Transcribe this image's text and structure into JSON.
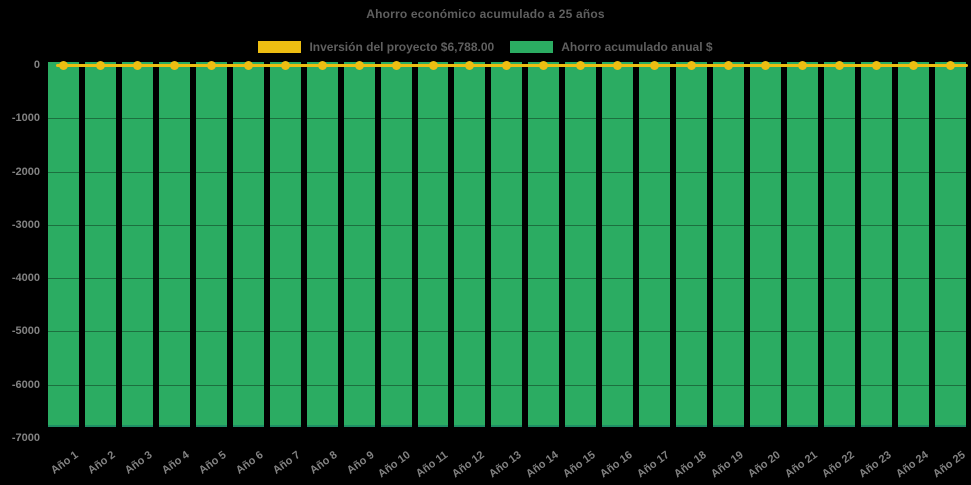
{
  "page": {
    "background": "#000000"
  },
  "chart": {
    "title": "Ahorro económico acumulado a 25 años",
    "legend": {
      "items": [
        {
          "id": "investment",
          "label": "Inversión del proyecto $6,788.00",
          "color": "#EDBE12"
        },
        {
          "id": "savings",
          "label": "Ahorro acumulado anual $",
          "color": "#2BAC62"
        }
      ]
    }
  },
  "chart_data": {
    "type": "bar",
    "title": "Ahorro económico acumulado a 25 años",
    "categories": [
      "Año 1",
      "Año 2",
      "Año 3",
      "Año 4",
      "Año 5",
      "Año 6",
      "Año 7",
      "Año 8",
      "Año 9",
      "Año 10",
      "Año 11",
      "Año 12",
      "Año 13",
      "Año 14",
      "Año 15",
      "Año 16",
      "Año 17",
      "Año 18",
      "Año 19",
      "Año 20",
      "Año 21",
      "Año 22",
      "Año 23",
      "Año 24",
      "Año 25"
    ],
    "series": [
      {
        "name": "Inversión del proyecto $6,788.00",
        "type": "line",
        "color": "#EDBE12",
        "marker": "circle",
        "values": [
          0,
          0,
          0,
          0,
          0,
          0,
          0,
          0,
          0,
          0,
          0,
          0,
          0,
          0,
          0,
          0,
          0,
          0,
          0,
          0,
          0,
          0,
          0,
          0,
          0
        ]
      },
      {
        "name": "Ahorro acumulado anual $",
        "type": "bar",
        "color": "#2BAC62",
        "values": [
          -6788,
          -6788,
          -6788,
          -6788,
          -6788,
          -6788,
          -6788,
          -6788,
          -6788,
          -6788,
          -6788,
          -6788,
          -6788,
          -6788,
          -6788,
          -6788,
          -6788,
          -6788,
          -6788,
          -6788,
          -6788,
          -6788,
          -6788,
          -6788,
          -6788
        ]
      }
    ],
    "xlabel": "",
    "ylabel": "",
    "ylim": [
      -7000,
      0
    ],
    "yticks": [
      0,
      -1000,
      -2000,
      -3000,
      -4000,
      -5000,
      -6000,
      -7000
    ],
    "grid": true,
    "legend_position": "top",
    "background": "#000000",
    "text_colors": {
      "title": "#5F5F5F",
      "axis": "#828282"
    }
  }
}
